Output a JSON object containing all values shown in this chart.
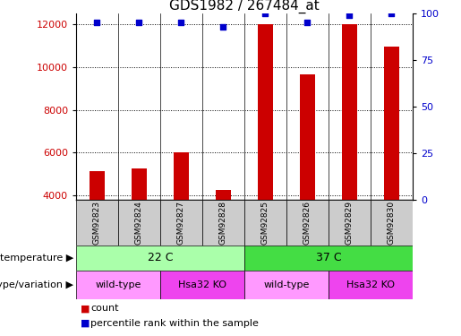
{
  "title": "GDS1982 / 267484_at",
  "samples": [
    "GSM92823",
    "GSM92824",
    "GSM92827",
    "GSM92828",
    "GSM92825",
    "GSM92826",
    "GSM92829",
    "GSM92830"
  ],
  "counts": [
    5150,
    5280,
    6020,
    4280,
    11980,
    9650,
    11980,
    10950
  ],
  "percentiles": [
    95,
    95,
    95,
    93,
    100,
    95,
    99,
    100
  ],
  "ylim_left": [
    3800,
    12500
  ],
  "ylim_right": [
    0,
    100
  ],
  "yticks_left": [
    4000,
    6000,
    8000,
    10000,
    12000
  ],
  "yticks_right": [
    0,
    25,
    50,
    75,
    100
  ],
  "bar_color": "#cc0000",
  "dot_color": "#0000cc",
  "temperature_groups": [
    {
      "label": "22 C",
      "start": 0,
      "end": 4,
      "color": "#aaffaa"
    },
    {
      "label": "37 C",
      "start": 4,
      "end": 8,
      "color": "#44dd44"
    }
  ],
  "genotype_groups": [
    {
      "label": "wild-type",
      "start": 0,
      "end": 2,
      "color": "#ff99ff"
    },
    {
      "label": "Hsa32 KO",
      "start": 2,
      "end": 4,
      "color": "#ee44ee"
    },
    {
      "label": "wild-type",
      "start": 4,
      "end": 6,
      "color": "#ff99ff"
    },
    {
      "label": "Hsa32 KO",
      "start": 6,
      "end": 8,
      "color": "#ee44ee"
    }
  ],
  "legend_count_label": "count",
  "legend_percentile_label": "percentile rank within the sample",
  "row_labels": [
    "temperature",
    "genotype/variation"
  ],
  "left_axis_color": "#cc0000",
  "right_axis_color": "#0000cc",
  "bar_width": 0.35,
  "sample_label_bg": "#cccccc",
  "title_fontsize": 11
}
